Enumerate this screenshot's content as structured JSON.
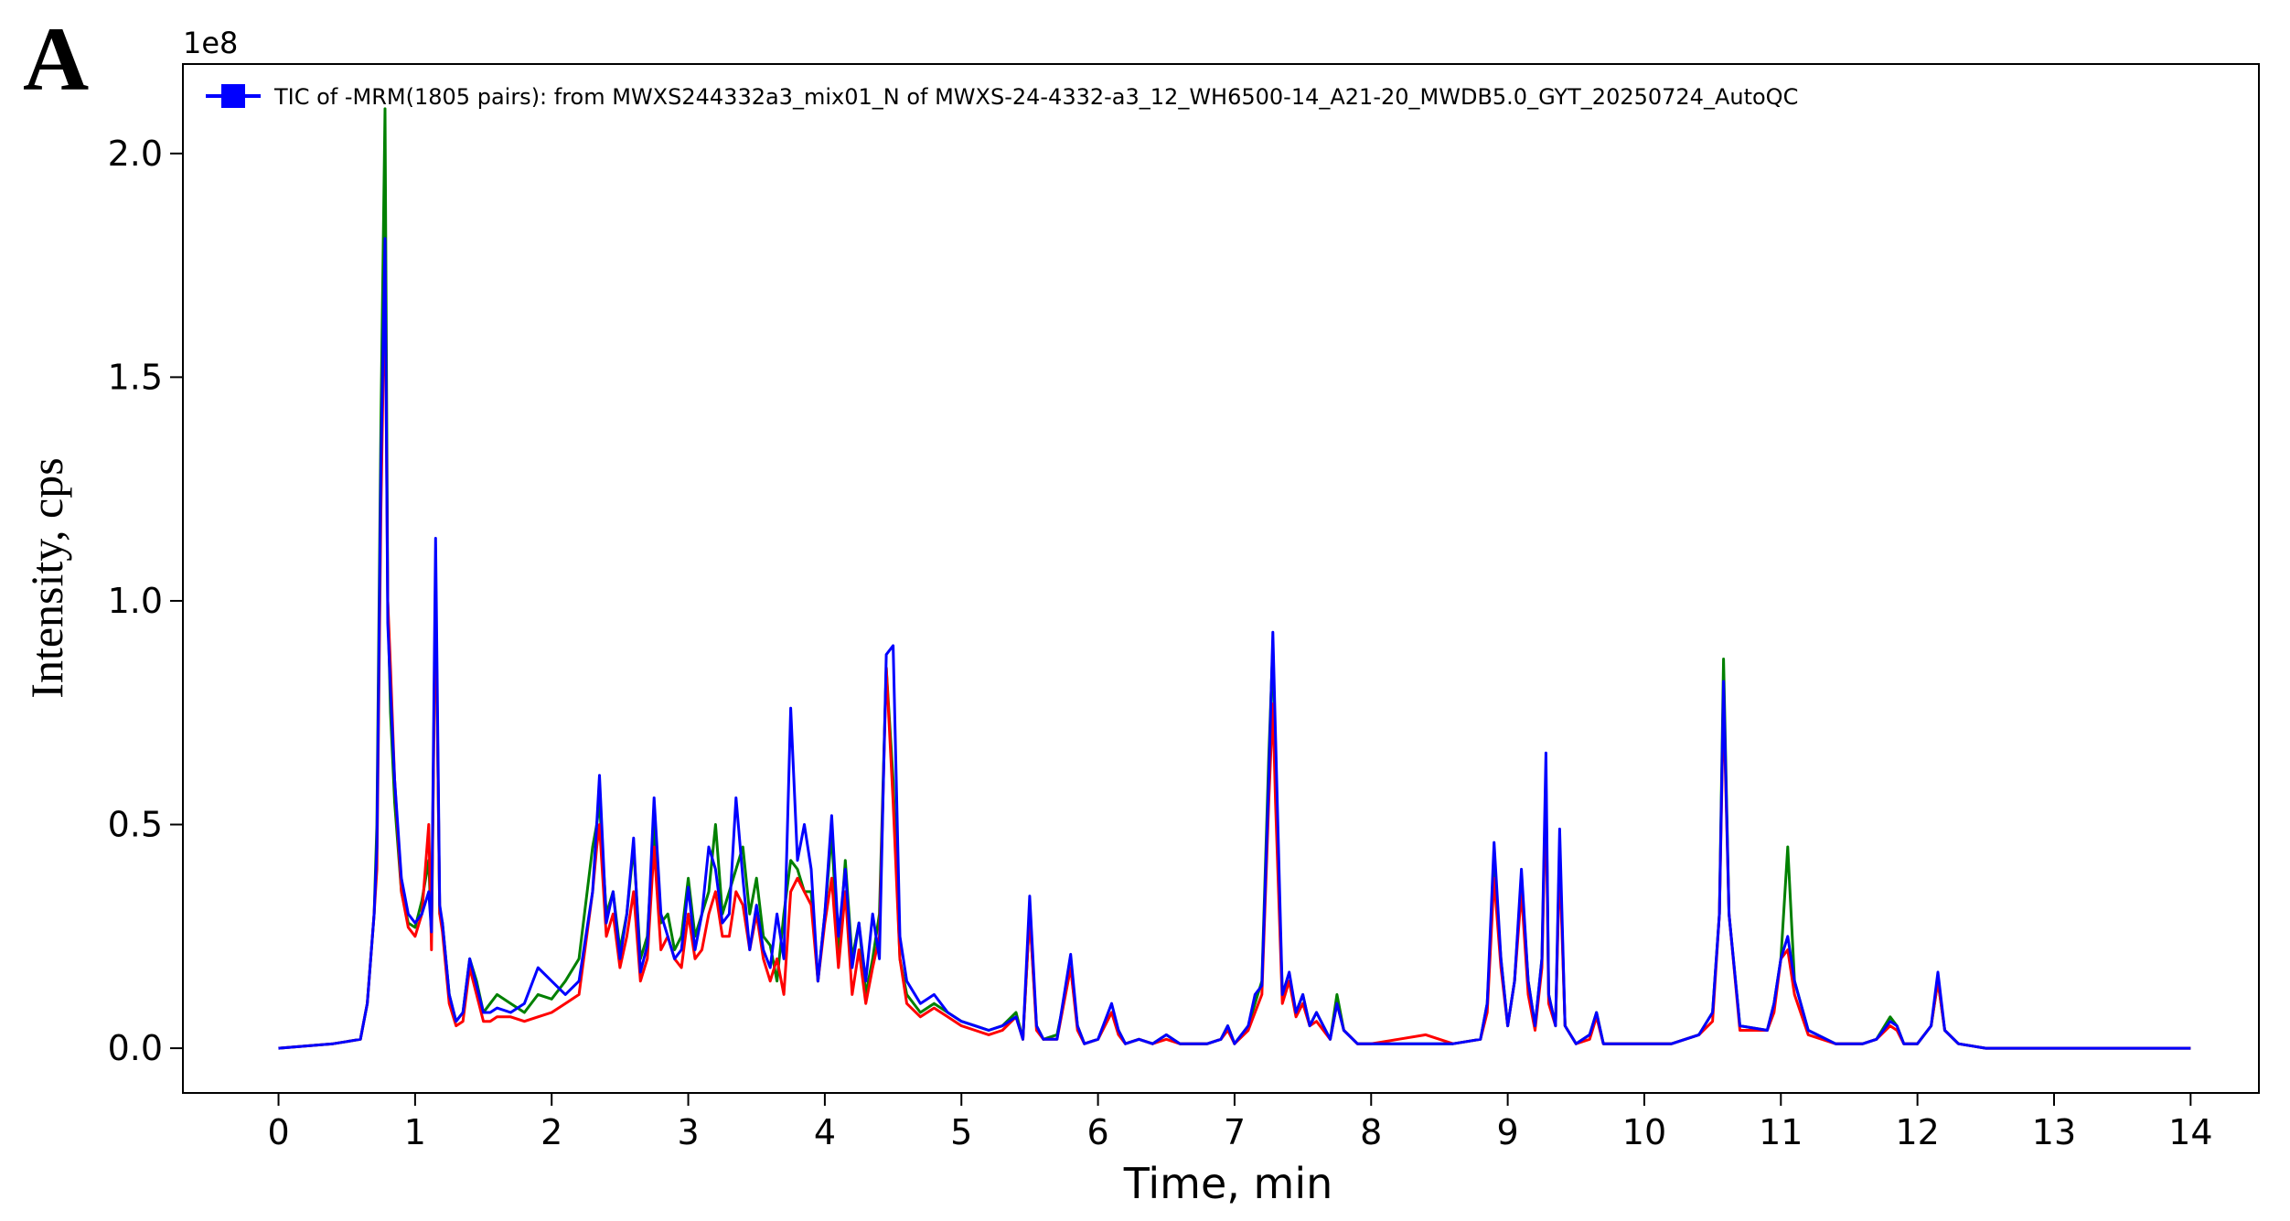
{
  "panel_label": "A",
  "colors": {
    "green": "#008000",
    "red": "#ff0000",
    "blue": "#0000ff"
  },
  "chart_data": {
    "type": "line",
    "title": "",
    "xlabel": "Time, min",
    "ylabel": "Intensity, cps",
    "y_offset_label": "1e8",
    "xlim": [
      -0.7,
      14.5
    ],
    "ylim": [
      -0.1,
      2.2
    ],
    "xticks": [
      0,
      1,
      2,
      3,
      4,
      5,
      6,
      7,
      8,
      9,
      10,
      11,
      12,
      13,
      14
    ],
    "xtick_labels": [
      "0",
      "1",
      "2",
      "3",
      "4",
      "5",
      "6",
      "7",
      "8",
      "9",
      "10",
      "11",
      "12",
      "13",
      "14"
    ],
    "yticks": [
      0.0,
      0.5,
      1.0,
      1.5,
      2.0
    ],
    "ytick_labels": [
      "0.0",
      "0.5",
      "1.0",
      "1.5",
      "2.0"
    ],
    "grid": false,
    "legend": {
      "placement": "top-left",
      "entry": "TIC of -MRM(1805 pairs): from MWXS244332a3_mix01_N of MWXS-24-4332-a3_12_WH6500-14_A21-20_MWDB5.0_GYT_20250724_AutoQC"
    },
    "series": [
      {
        "color": "green",
        "x": [
          0,
          0.4,
          0.5,
          0.6,
          0.65,
          0.7,
          0.72,
          0.75,
          0.78,
          0.8,
          0.82,
          0.85,
          0.9,
          0.95,
          1.0,
          1.05,
          1.1,
          1.12,
          1.15,
          1.18,
          1.2,
          1.25,
          1.3,
          1.35,
          1.4,
          1.45,
          1.5,
          1.55,
          1.6,
          1.7,
          1.8,
          1.9,
          2.0,
          2.1,
          2.2,
          2.3,
          2.33,
          2.35,
          2.4,
          2.45,
          2.5,
          2.55,
          2.6,
          2.65,
          2.7,
          2.75,
          2.8,
          2.85,
          2.9,
          2.95,
          3.0,
          3.05,
          3.1,
          3.15,
          3.2,
          3.25,
          3.3,
          3.35,
          3.4,
          3.45,
          3.5,
          3.55,
          3.6,
          3.65,
          3.7,
          3.75,
          3.8,
          3.85,
          3.9,
          3.95,
          4.0,
          4.05,
          4.1,
          4.15,
          4.2,
          4.25,
          4.3,
          4.35,
          4.4,
          4.45,
          4.5,
          4.55,
          4.6,
          4.7,
          4.8,
          4.9,
          5.0,
          5.1,
          5.2,
          5.3,
          5.4,
          5.45,
          5.5,
          5.55,
          5.6,
          5.7,
          5.8,
          5.85,
          5.9,
          6.0,
          6.1,
          6.15,
          6.2,
          6.3,
          6.4,
          6.5,
          6.6,
          6.7,
          6.8,
          6.9,
          6.95,
          7.0,
          7.1,
          7.15,
          7.2,
          7.25,
          7.28,
          7.3,
          7.35,
          7.4,
          7.45,
          7.5,
          7.55,
          7.6,
          7.7,
          7.75,
          7.8,
          7.9,
          8.0,
          8.2,
          8.4,
          8.6,
          8.8,
          8.85,
          8.9,
          8.95,
          9.0,
          9.05,
          9.1,
          9.15,
          9.2,
          9.25,
          9.28,
          9.3,
          9.35,
          9.38,
          9.42,
          9.5,
          9.6,
          9.65,
          9.7,
          9.8,
          10.0,
          10.2,
          10.4,
          10.5,
          10.55,
          10.58,
          10.62,
          10.7,
          10.9,
          10.95,
          11.0,
          11.05,
          11.1,
          11.2,
          11.4,
          11.6,
          11.7,
          11.8,
          11.85,
          11.9,
          12.0,
          12.1,
          12.15,
          12.2,
          12.3,
          12.5,
          13.0,
          14.0
        ],
        "y": [
          0,
          0.01,
          0.015,
          0.02,
          0.1,
          0.3,
          0.5,
          1.4,
          2.1,
          1.0,
          0.75,
          0.55,
          0.35,
          0.28,
          0.27,
          0.33,
          0.42,
          0.25,
          1.05,
          0.3,
          0.28,
          0.12,
          0.06,
          0.08,
          0.2,
          0.15,
          0.08,
          0.1,
          0.12,
          0.1,
          0.08,
          0.12,
          0.11,
          0.15,
          0.2,
          0.45,
          0.5,
          0.55,
          0.3,
          0.35,
          0.22,
          0.3,
          0.45,
          0.2,
          0.25,
          0.5,
          0.28,
          0.3,
          0.22,
          0.25,
          0.38,
          0.25,
          0.3,
          0.35,
          0.5,
          0.3,
          0.35,
          0.4,
          0.45,
          0.3,
          0.38,
          0.25,
          0.23,
          0.15,
          0.3,
          0.42,
          0.4,
          0.35,
          0.35,
          0.15,
          0.3,
          0.48,
          0.2,
          0.42,
          0.2,
          0.28,
          0.12,
          0.2,
          0.3,
          0.85,
          0.6,
          0.2,
          0.12,
          0.08,
          0.1,
          0.08,
          0.06,
          0.05,
          0.04,
          0.05,
          0.08,
          0.02,
          0.3,
          0.05,
          0.02,
          0.03,
          0.18,
          0.05,
          0.01,
          0.02,
          0.08,
          0.04,
          0.01,
          0.02,
          0.01,
          0.03,
          0.01,
          0.01,
          0.01,
          0.02,
          0.05,
          0.01,
          0.05,
          0.1,
          0.15,
          0.65,
          0.9,
          0.6,
          0.12,
          0.15,
          0.08,
          0.12,
          0.05,
          0.08,
          0.02,
          0.12,
          0.04,
          0.01,
          0.01,
          0.01,
          0.01,
          0.01,
          0.02,
          0.1,
          0.4,
          0.2,
          0.05,
          0.15,
          0.38,
          0.15,
          0.05,
          0.2,
          0.6,
          0.12,
          0.05,
          0.45,
          0.05,
          0.01,
          0.03,
          0.08,
          0.01,
          0.01,
          0.01,
          0.01,
          0.03,
          0.08,
          0.3,
          0.87,
          0.3,
          0.05,
          0.04,
          0.1,
          0.2,
          0.45,
          0.15,
          0.04,
          0.01,
          0.01,
          0.02,
          0.07,
          0.05,
          0.01,
          0.01,
          0.05,
          0.15,
          0.04,
          0.01,
          0.0,
          0.0,
          0.0
        ]
      },
      {
        "color": "red",
        "x": [
          0,
          0.4,
          0.5,
          0.6,
          0.65,
          0.7,
          0.72,
          0.75,
          0.78,
          0.8,
          0.82,
          0.85,
          0.9,
          0.95,
          1.0,
          1.05,
          1.1,
          1.12,
          1.15,
          1.18,
          1.2,
          1.25,
          1.3,
          1.35,
          1.4,
          1.45,
          1.5,
          1.55,
          1.6,
          1.7,
          1.8,
          1.9,
          2.0,
          2.1,
          2.2,
          2.3,
          2.33,
          2.35,
          2.4,
          2.45,
          2.5,
          2.55,
          2.6,
          2.65,
          2.7,
          2.75,
          2.8,
          2.85,
          2.9,
          2.95,
          3.0,
          3.05,
          3.1,
          3.15,
          3.2,
          3.25,
          3.3,
          3.35,
          3.4,
          3.45,
          3.5,
          3.55,
          3.6,
          3.65,
          3.7,
          3.75,
          3.8,
          3.85,
          3.9,
          3.95,
          4.0,
          4.05,
          4.1,
          4.15,
          4.2,
          4.25,
          4.3,
          4.35,
          4.4,
          4.45,
          4.5,
          4.55,
          4.6,
          4.7,
          4.8,
          4.9,
          5.0,
          5.1,
          5.2,
          5.3,
          5.4,
          5.45,
          5.5,
          5.55,
          5.6,
          5.7,
          5.8,
          5.85,
          5.9,
          6.0,
          6.1,
          6.15,
          6.2,
          6.3,
          6.4,
          6.5,
          6.6,
          6.7,
          6.8,
          6.9,
          6.95,
          7.0,
          7.1,
          7.15,
          7.2,
          7.25,
          7.28,
          7.3,
          7.35,
          7.4,
          7.45,
          7.5,
          7.55,
          7.6,
          7.7,
          7.75,
          7.8,
          7.9,
          8.0,
          8.2,
          8.4,
          8.6,
          8.8,
          8.85,
          8.9,
          8.95,
          9.0,
          9.05,
          9.1,
          9.15,
          9.2,
          9.25,
          9.28,
          9.3,
          9.35,
          9.38,
          9.42,
          9.5,
          9.6,
          9.65,
          9.7,
          9.8,
          10.0,
          10.2,
          10.4,
          10.5,
          10.55,
          10.58,
          10.62,
          10.7,
          10.9,
          10.95,
          11.0,
          11.05,
          11.1,
          11.2,
          11.4,
          11.6,
          11.7,
          11.8,
          11.85,
          11.9,
          12.0,
          12.1,
          12.15,
          12.2,
          12.3,
          12.5,
          13.0,
          14.0
        ],
        "y": [
          0,
          0.01,
          0.015,
          0.02,
          0.1,
          0.3,
          0.4,
          1.2,
          1.75,
          1.0,
          0.85,
          0.6,
          0.35,
          0.27,
          0.25,
          0.3,
          0.5,
          0.22,
          1.05,
          0.3,
          0.26,
          0.1,
          0.05,
          0.06,
          0.18,
          0.12,
          0.06,
          0.06,
          0.07,
          0.07,
          0.06,
          0.07,
          0.08,
          0.1,
          0.12,
          0.35,
          0.45,
          0.5,
          0.25,
          0.3,
          0.18,
          0.25,
          0.35,
          0.15,
          0.2,
          0.45,
          0.22,
          0.25,
          0.2,
          0.18,
          0.3,
          0.2,
          0.22,
          0.3,
          0.35,
          0.25,
          0.25,
          0.35,
          0.32,
          0.22,
          0.3,
          0.2,
          0.15,
          0.2,
          0.12,
          0.35,
          0.38,
          0.35,
          0.32,
          0.15,
          0.28,
          0.38,
          0.18,
          0.35,
          0.12,
          0.22,
          0.1,
          0.18,
          0.25,
          0.85,
          0.55,
          0.2,
          0.1,
          0.07,
          0.09,
          0.07,
          0.05,
          0.04,
          0.03,
          0.04,
          0.07,
          0.02,
          0.3,
          0.04,
          0.02,
          0.02,
          0.18,
          0.04,
          0.01,
          0.02,
          0.08,
          0.03,
          0.01,
          0.02,
          0.01,
          0.02,
          0.01,
          0.01,
          0.01,
          0.02,
          0.04,
          0.01,
          0.04,
          0.08,
          0.12,
          0.55,
          0.77,
          0.55,
          0.1,
          0.15,
          0.07,
          0.1,
          0.05,
          0.06,
          0.02,
          0.1,
          0.04,
          0.01,
          0.01,
          0.02,
          0.03,
          0.01,
          0.02,
          0.08,
          0.38,
          0.18,
          0.05,
          0.15,
          0.35,
          0.12,
          0.04,
          0.18,
          0.58,
          0.1,
          0.05,
          0.42,
          0.05,
          0.01,
          0.02,
          0.07,
          0.01,
          0.01,
          0.01,
          0.01,
          0.03,
          0.06,
          0.3,
          0.78,
          0.3,
          0.04,
          0.04,
          0.08,
          0.2,
          0.22,
          0.12,
          0.03,
          0.01,
          0.01,
          0.02,
          0.05,
          0.04,
          0.01,
          0.01,
          0.05,
          0.15,
          0.04,
          0.01,
          0.0,
          0.0,
          0.0
        ]
      },
      {
        "color": "blue",
        "x": [
          0,
          0.4,
          0.5,
          0.6,
          0.65,
          0.7,
          0.72,
          0.75,
          0.78,
          0.8,
          0.82,
          0.85,
          0.9,
          0.95,
          1.0,
          1.05,
          1.1,
          1.12,
          1.15,
          1.18,
          1.2,
          1.25,
          1.3,
          1.35,
          1.4,
          1.45,
          1.5,
          1.55,
          1.6,
          1.7,
          1.8,
          1.9,
          2.0,
          2.1,
          2.2,
          2.3,
          2.33,
          2.35,
          2.4,
          2.45,
          2.5,
          2.55,
          2.6,
          2.65,
          2.7,
          2.75,
          2.8,
          2.85,
          2.9,
          2.95,
          3.0,
          3.05,
          3.1,
          3.15,
          3.2,
          3.25,
          3.3,
          3.35,
          3.4,
          3.45,
          3.5,
          3.55,
          3.6,
          3.65,
          3.7,
          3.75,
          3.8,
          3.85,
          3.9,
          3.95,
          4.0,
          4.05,
          4.1,
          4.15,
          4.2,
          4.25,
          4.3,
          4.35,
          4.4,
          4.45,
          4.5,
          4.55,
          4.6,
          4.7,
          4.8,
          4.9,
          5.0,
          5.1,
          5.2,
          5.3,
          5.4,
          5.45,
          5.5,
          5.55,
          5.6,
          5.7,
          5.8,
          5.85,
          5.9,
          6.0,
          6.1,
          6.15,
          6.2,
          6.3,
          6.4,
          6.5,
          6.6,
          6.7,
          6.8,
          6.9,
          6.95,
          7.0,
          7.1,
          7.15,
          7.2,
          7.25,
          7.28,
          7.3,
          7.35,
          7.4,
          7.45,
          7.5,
          7.55,
          7.6,
          7.7,
          7.75,
          7.8,
          7.9,
          8.0,
          8.2,
          8.4,
          8.6,
          8.8,
          8.85,
          8.9,
          8.95,
          9.0,
          9.05,
          9.1,
          9.15,
          9.2,
          9.25,
          9.28,
          9.3,
          9.35,
          9.38,
          9.42,
          9.5,
          9.6,
          9.65,
          9.7,
          9.8,
          10.0,
          10.2,
          10.4,
          10.5,
          10.55,
          10.58,
          10.62,
          10.7,
          10.9,
          10.95,
          11.0,
          11.05,
          11.1,
          11.2,
          11.4,
          11.6,
          11.7,
          11.8,
          11.85,
          11.9,
          12.0,
          12.1,
          12.15,
          12.2,
          12.3,
          12.5,
          13.0,
          14.0
        ],
        "y": [
          0,
          0.01,
          0.015,
          0.02,
          0.1,
          0.3,
          0.45,
          1.3,
          1.81,
          0.95,
          0.8,
          0.6,
          0.38,
          0.3,
          0.28,
          0.3,
          0.35,
          0.26,
          1.14,
          0.32,
          0.28,
          0.12,
          0.06,
          0.08,
          0.2,
          0.14,
          0.08,
          0.08,
          0.09,
          0.08,
          0.1,
          0.18,
          0.15,
          0.12,
          0.15,
          0.35,
          0.5,
          0.61,
          0.28,
          0.35,
          0.2,
          0.3,
          0.47,
          0.17,
          0.23,
          0.56,
          0.3,
          0.25,
          0.2,
          0.22,
          0.36,
          0.22,
          0.3,
          0.45,
          0.4,
          0.28,
          0.3,
          0.56,
          0.38,
          0.22,
          0.32,
          0.22,
          0.18,
          0.3,
          0.2,
          0.76,
          0.42,
          0.5,
          0.4,
          0.15,
          0.3,
          0.52,
          0.25,
          0.4,
          0.18,
          0.28,
          0.15,
          0.3,
          0.2,
          0.88,
          0.9,
          0.25,
          0.15,
          0.1,
          0.12,
          0.08,
          0.06,
          0.05,
          0.04,
          0.05,
          0.07,
          0.02,
          0.34,
          0.05,
          0.02,
          0.02,
          0.21,
          0.05,
          0.01,
          0.02,
          0.1,
          0.04,
          0.01,
          0.02,
          0.01,
          0.03,
          0.01,
          0.01,
          0.01,
          0.02,
          0.05,
          0.01,
          0.05,
          0.12,
          0.14,
          0.6,
          0.93,
          0.7,
          0.12,
          0.17,
          0.08,
          0.12,
          0.05,
          0.08,
          0.02,
          0.1,
          0.04,
          0.01,
          0.01,
          0.01,
          0.01,
          0.01,
          0.02,
          0.1,
          0.46,
          0.2,
          0.05,
          0.15,
          0.4,
          0.15,
          0.05,
          0.2,
          0.66,
          0.12,
          0.05,
          0.49,
          0.05,
          0.01,
          0.03,
          0.08,
          0.01,
          0.01,
          0.01,
          0.01,
          0.03,
          0.08,
          0.3,
          0.82,
          0.3,
          0.05,
          0.04,
          0.1,
          0.2,
          0.25,
          0.15,
          0.04,
          0.01,
          0.01,
          0.02,
          0.06,
          0.05,
          0.01,
          0.01,
          0.05,
          0.17,
          0.04,
          0.01,
          0.0,
          0.0,
          0.0
        ]
      }
    ]
  }
}
